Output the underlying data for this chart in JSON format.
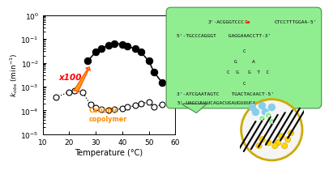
{
  "open_x": [
    15,
    20,
    22,
    25,
    28,
    30,
    32,
    35,
    37,
    40,
    42,
    45,
    47,
    50,
    52,
    55
  ],
  "open_y": [
    0.00035,
    0.0006,
    0.0007,
    0.0006,
    0.00018,
    0.00013,
    0.00011,
    0.0001,
    0.00011,
    0.00012,
    0.00014,
    0.00016,
    0.0002,
    0.00022,
    0.00014,
    0.00018
  ],
  "filled_x": [
    27,
    30,
    32,
    35,
    37,
    40,
    42,
    45,
    47,
    50,
    52,
    55
  ],
  "filled_y": [
    0.012,
    0.028,
    0.04,
    0.055,
    0.065,
    0.06,
    0.05,
    0.038,
    0.028,
    0.012,
    0.004,
    0.0015
  ],
  "xlim": [
    10,
    60
  ],
  "xlabel": "Temperature (°C)",
  "x100_color": "#ff0000",
  "arrow_fill_color": "#ffa500",
  "arrow_edge_color": "#ff4400",
  "cationic_color": "#ff8c00",
  "bg_color": "#ffffff",
  "dna_seq1_top": "3'-ACGGGTCCC",
  "dna_seq1_red": "Ga",
  "dna_seq1_bot": "CTCCTTTGGAA-5'",
  "dna_seq2": "5'-TGCCCAGGGT    GAGGAAACCTT-3'",
  "dna_seq3": "3'-ATCGAATAGTC    TGACTACAACT-5'",
  "dna_seq4": "5'-UAGCUUAUCAGACUGAUGUUUGA-3'",
  "green_bubble_color": "#90EE90",
  "marker_size_open": 5,
  "marker_size_filled": 6
}
